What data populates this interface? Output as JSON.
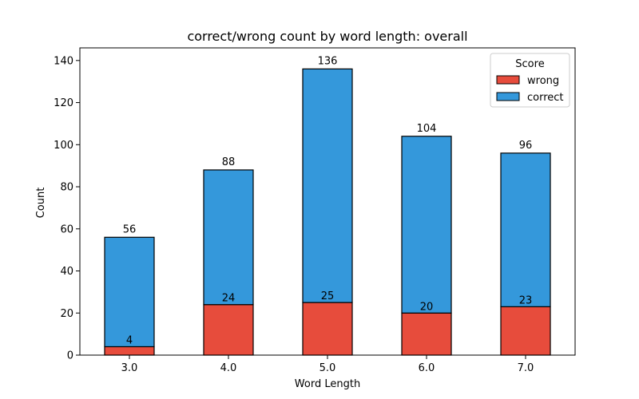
{
  "chart_data": {
    "type": "bar",
    "stacked": true,
    "title": "correct/wrong count by word length: overall",
    "xlabel": "Word Length",
    "ylabel": "Count",
    "categories": [
      "3.0",
      "4.0",
      "5.0",
      "6.0",
      "7.0"
    ],
    "ylim": [
      0,
      146
    ],
    "yticks": [
      0,
      20,
      40,
      60,
      80,
      100,
      120,
      140
    ],
    "series": [
      {
        "name": "wrong",
        "values": [
          4,
          24,
          25,
          20,
          23
        ],
        "color": "#e74c3c"
      },
      {
        "name": "correct",
        "values": [
          52,
          64,
          111,
          84,
          73
        ],
        "color": "#3498db"
      }
    ],
    "totals": [
      56,
      88,
      136,
      104,
      96
    ],
    "legend": {
      "title": "Score",
      "placement": "top-right"
    },
    "grid": false
  }
}
